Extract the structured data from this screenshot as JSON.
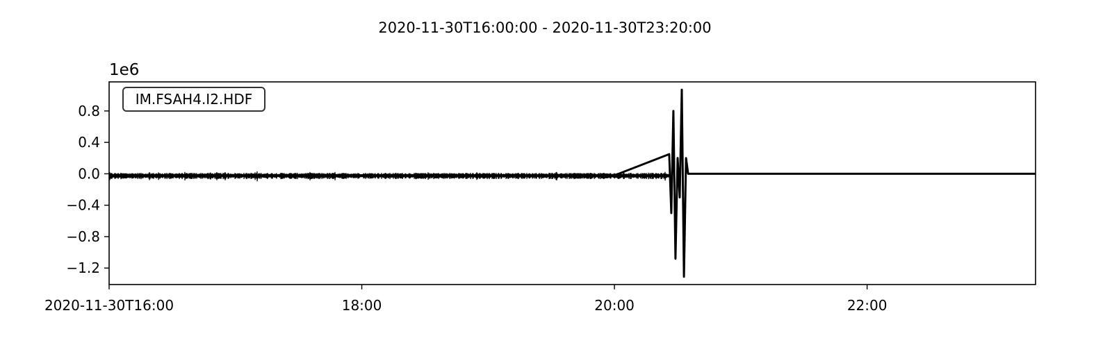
{
  "chart_data": {
    "type": "line",
    "title": "2020-11-30T16:00:00  -  2020-11-30T23:20:00",
    "offset_label": "1e6",
    "trace_label": "IM.FSAH4.I2.HDF",
    "xlabel": "",
    "ylabel": "",
    "xlim": [
      "2020-11-30T16:00:00",
      "2020-11-30T23:20:00"
    ],
    "ylim": [
      -1.41,
      1.17
    ],
    "yscale_factor": 1000000,
    "y_ticks": [
      0.8,
      0.4,
      0.0,
      -0.4,
      -0.8,
      -1.2
    ],
    "y_tick_labels": [
      "0.8",
      "0.4",
      "0.0",
      "−0.4",
      "−0.8",
      "−1.2"
    ],
    "x_ticks": [
      "2020-11-30T16:00:00",
      "2020-11-30T18:00:00",
      "2020-11-30T20:00:00",
      "2020-11-30T22:00:00"
    ],
    "x_tick_labels": [
      "2020-11-30T16:00",
      "18:00",
      "20:00",
      "22:00"
    ],
    "grid": false,
    "line_color": "#000000",
    "series": [
      {
        "x": [
          "2020-11-30T16:00:00",
          "2020-11-30T17:00:00",
          "2020-11-30T18:00:00",
          "2020-11-30T19:00:00",
          "2020-11-30T20:00:00",
          "2020-11-30T20:26:00",
          "2020-11-30T20:27:00",
          "2020-11-30T20:28:00",
          "2020-11-30T20:29:00",
          "2020-11-30T20:30:00",
          "2020-11-30T20:31:00",
          "2020-11-30T20:32:00",
          "2020-11-30T20:33:00",
          "2020-11-30T20:34:00",
          "2020-11-30T20:35:00",
          "2020-11-30T21:00:00",
          "2020-11-30T22:00:00",
          "2020-11-30T23:20:00"
        ],
        "y": [
          -0.02,
          -0.02,
          -0.02,
          -0.02,
          -0.02,
          0.25,
          -0.5,
          0.8,
          -1.08,
          0.2,
          -0.3,
          1.07,
          -1.31,
          0.2,
          0.0,
          0.0,
          0.0,
          0.0
        ]
      }
    ]
  }
}
